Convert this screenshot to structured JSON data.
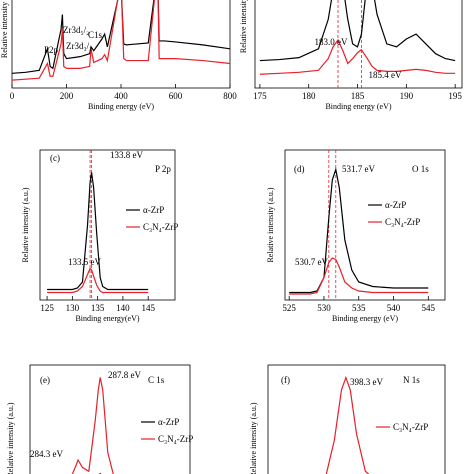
{
  "chart_data": [
    {
      "type": "line",
      "xlabel": "Binding energy (eV)",
      "ylabel": "Relative intensity",
      "x": [
        0,
        50,
        100,
        130,
        140,
        150,
        180,
        185,
        190,
        200,
        250,
        285,
        290,
        300,
        330,
        340,
        350,
        400,
        410,
        420,
        500,
        530,
        535,
        540,
        560,
        600,
        700,
        800
      ],
      "xlim": [
        0,
        800
      ],
      "xticks": [
        0,
        200,
        400,
        600,
        800
      ],
      "ylim": [
        0,
        100
      ],
      "series": [
        {
          "name": "α-ZrP",
          "color": "#000000",
          "values": [
            15,
            16,
            18,
            40,
            22,
            20,
            60,
            75,
            35,
            30,
            32,
            35,
            42,
            38,
            50,
            55,
            42,
            105,
            45,
            44,
            46,
            110,
            110,
            48,
            48,
            47,
            44,
            40
          ]
        },
        {
          "name": "C₃N₄-ZrP",
          "color": "#e8202a",
          "values": [
            8,
            9,
            10,
            25,
            12,
            12,
            45,
            60,
            22,
            20,
            20,
            22,
            40,
            26,
            30,
            34,
            28,
            110,
            30,
            28,
            28,
            110,
            110,
            30,
            30,
            30,
            28,
            25
          ]
        }
      ],
      "annotations": [
        {
          "text": "P2p",
          "x": 130
        },
        {
          "text": "Zr3d₅/₂",
          "x": 180
        },
        {
          "text": "Zr3d₃/₂",
          "x": 185
        },
        {
          "text": "C1s",
          "x": 285
        }
      ]
    },
    {
      "type": "line",
      "xlabel": "Binding energy (eV)",
      "ylabel": "Relative intensity",
      "x": [
        175,
        177,
        179,
        181,
        182,
        182.5,
        183,
        183.5,
        184,
        184.5,
        185,
        185.4,
        186,
        186.5,
        187,
        188,
        189,
        190,
        191,
        192,
        193,
        194,
        195
      ],
      "xlim": [
        174.5,
        195.7
      ],
      "xticks": [
        175,
        180,
        185,
        190,
        195
      ],
      "ylim": [
        0,
        100
      ],
      "peak_lines": true,
      "series": [
        {
          "name": "α-ZrP",
          "color": "#000000",
          "values": [
            28,
            29,
            31,
            40,
            70,
            100,
            115,
            105,
            70,
            45,
            42,
            55,
            110,
            105,
            75,
            45,
            42,
            50,
            55,
            45,
            35,
            30,
            28
          ]
        },
        {
          "name": "C₃N₄-ZrP",
          "color": "#e8202a",
          "values": [
            14,
            15,
            16,
            18,
            30,
            42,
            49,
            38,
            25,
            30,
            36,
            39,
            30,
            22,
            18,
            17,
            17,
            18,
            19,
            18,
            16,
            15,
            15
          ]
        }
      ],
      "annotations": [
        {
          "text": "183.0 eV",
          "x": 183.0
        },
        {
          "text": "185.4 eV",
          "x": 185.4
        }
      ]
    },
    {
      "type": "line",
      "panel": "(c)",
      "title": "P 2p",
      "xlabel": "Binding energy(eV)",
      "ylabel": "Relative intensity (a.u.)",
      "x": [
        125,
        128,
        130,
        131,
        132,
        133,
        133.5,
        133.8,
        134.2,
        134.8,
        135.5,
        136,
        137,
        140,
        145
      ],
      "xlim": [
        123.6,
        150.3
      ],
      "xticks": [
        125,
        130,
        135,
        140,
        145
      ],
      "ylim": [
        0,
        100
      ],
      "peak_lines": true,
      "legend": true,
      "series": [
        {
          "name": "α-ZrP",
          "color": "#000000",
          "values": [
            7,
            7,
            7,
            8,
            12,
            50,
            78,
            85,
            75,
            45,
            15,
            9,
            7,
            7,
            7
          ]
        },
        {
          "name": "C₃N₄-ZrP",
          "color": "#e8202a",
          "values": [
            5,
            5,
            5,
            6,
            9,
            17,
            21,
            20,
            16,
            10,
            6,
            5,
            5,
            5,
            5
          ]
        }
      ],
      "annotations": [
        {
          "text": "133.8 eV",
          "x": 133.8
        },
        {
          "text": "133.5 eV",
          "x": 133.5
        }
      ]
    },
    {
      "type": "line",
      "panel": "(d)",
      "title": "O 1s",
      "xlabel": "Binding energy (eV)",
      "ylabel": "Relative intensity (a.u.)",
      "x": [
        525,
        528,
        529,
        530,
        530.7,
        531.2,
        531.7,
        532.2,
        533,
        534,
        535,
        537,
        540,
        545
      ],
      "xlim": [
        524.4,
        547.4
      ],
      "xticks": [
        525,
        530,
        535,
        540,
        545
      ],
      "ylim": [
        0,
        100
      ],
      "peak_lines": true,
      "legend": true,
      "series": [
        {
          "name": "α-ZrP",
          "color": "#000000",
          "values": [
            5,
            5,
            6,
            15,
            55,
            80,
            87,
            75,
            40,
            20,
            12,
            9,
            8,
            8
          ]
        },
        {
          "name": "C₃N₄-ZrP",
          "color": "#e8202a",
          "values": [
            4,
            4,
            5,
            15,
            25,
            28,
            27,
            22,
            12,
            8,
            6,
            5,
            5,
            5
          ]
        }
      ],
      "annotations": [
        {
          "text": "531.7 eV",
          "x": 531.7
        },
        {
          "text": "530.7 eV",
          "x": 530.7
        }
      ]
    },
    {
      "type": "line",
      "panel": "(e)",
      "title": "C 1s",
      "ylabel": "Relative intensity (a.u.)",
      "x": [
        277,
        280,
        282,
        283,
        284,
        284.3,
        285,
        286,
        287,
        287.5,
        287.8,
        288.2,
        289,
        290,
        292,
        295,
        302
      ],
      "xlim": [
        276.7,
        302
      ],
      "ylim": [
        0,
        100
      ],
      "legend": true,
      "series": [
        {
          "name": "α-ZrP",
          "color": "#000000",
          "values": [
            1,
            1,
            2,
            3,
            8,
            12,
            9,
            7,
            10,
            12,
            13,
            11,
            6,
            3,
            2,
            1,
            1
          ]
        },
        {
          "name": "C₃N₄-ZrP",
          "color": "#e8202a",
          "values": [
            2,
            3,
            5,
            8,
            20,
            24,
            18,
            15,
            55,
            80,
            90,
            80,
            30,
            10,
            5,
            3,
            2
          ]
        }
      ],
      "annotations": [
        {
          "text": "287.8 eV",
          "x": 287.8
        },
        {
          "text": "284.3 eV",
          "x": 284.3
        }
      ]
    },
    {
      "type": "line",
      "panel": "(f)",
      "title": "N 1s",
      "ylabel": "Relative intensity (a.u.)",
      "x": [
        390,
        394,
        396,
        397,
        397.8,
        398.3,
        398.8,
        399.5,
        400.5,
        402,
        405,
        409
      ],
      "xlim": [
        389.5,
        409.5
      ],
      "ylim": [
        0,
        100
      ],
      "legend": true,
      "series": [
        {
          "name": "C₃N₄-ZrP",
          "color": "#e8202a",
          "values": [
            2,
            4,
            10,
            40,
            80,
            90,
            80,
            45,
            15,
            6,
            3,
            2
          ]
        }
      ],
      "annotations": [
        {
          "text": "398.3 eV",
          "x": 398.3
        }
      ]
    }
  ]
}
